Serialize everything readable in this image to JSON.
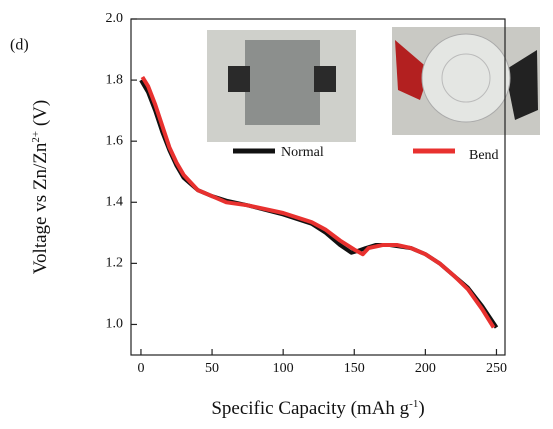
{
  "chart_data": {
    "type": "line",
    "panel_label": "(d)",
    "x_label": [
      "Specific Capacity (mAh g",
      "-1",
      ")"
    ],
    "y_label": [
      "Voltage vs Zn/Zn",
      "2+",
      " (V)"
    ],
    "xlim": [
      -7,
      256
    ],
    "xticks": [
      0,
      50,
      100,
      150,
      200,
      250
    ],
    "ylim": [
      0.9,
      2.0
    ],
    "yticks": [
      {
        "value": 1.0,
        "label": "1.0"
      },
      1.2,
      1.4,
      1.6,
      1.8,
      {
        "value": 2.0,
        "label": "2.0"
      }
    ],
    "series": [
      {
        "name": "Normal",
        "color": "#111111",
        "x": [
          0,
          5,
          10,
          15,
          20,
          25,
          30,
          40,
          50,
          60,
          75,
          100,
          120,
          130,
          140,
          148,
          152,
          158,
          165,
          175,
          190,
          200,
          210,
          220,
          230,
          240,
          250
        ],
        "values": [
          1.8,
          1.76,
          1.7,
          1.63,
          1.57,
          1.52,
          1.48,
          1.44,
          1.42,
          1.405,
          1.39,
          1.36,
          1.33,
          1.3,
          1.26,
          1.235,
          1.24,
          1.25,
          1.26,
          1.26,
          1.25,
          1.23,
          1.2,
          1.16,
          1.12,
          1.06,
          0.99
        ]
      },
      {
        "name": "Bend",
        "color": "#e8312f",
        "x": [
          1,
          5,
          10,
          15,
          20,
          25,
          30,
          40,
          50,
          60,
          75,
          100,
          120,
          130,
          140,
          150,
          156,
          160,
          170,
          180,
          190,
          200,
          210,
          220,
          230,
          240,
          248
        ],
        "values": [
          1.81,
          1.78,
          1.72,
          1.65,
          1.58,
          1.53,
          1.49,
          1.44,
          1.42,
          1.4,
          1.39,
          1.365,
          1.335,
          1.31,
          1.275,
          1.245,
          1.23,
          1.25,
          1.26,
          1.26,
          1.25,
          1.23,
          1.2,
          1.16,
          1.115,
          1.05,
          0.99
        ]
      }
    ]
  }
}
